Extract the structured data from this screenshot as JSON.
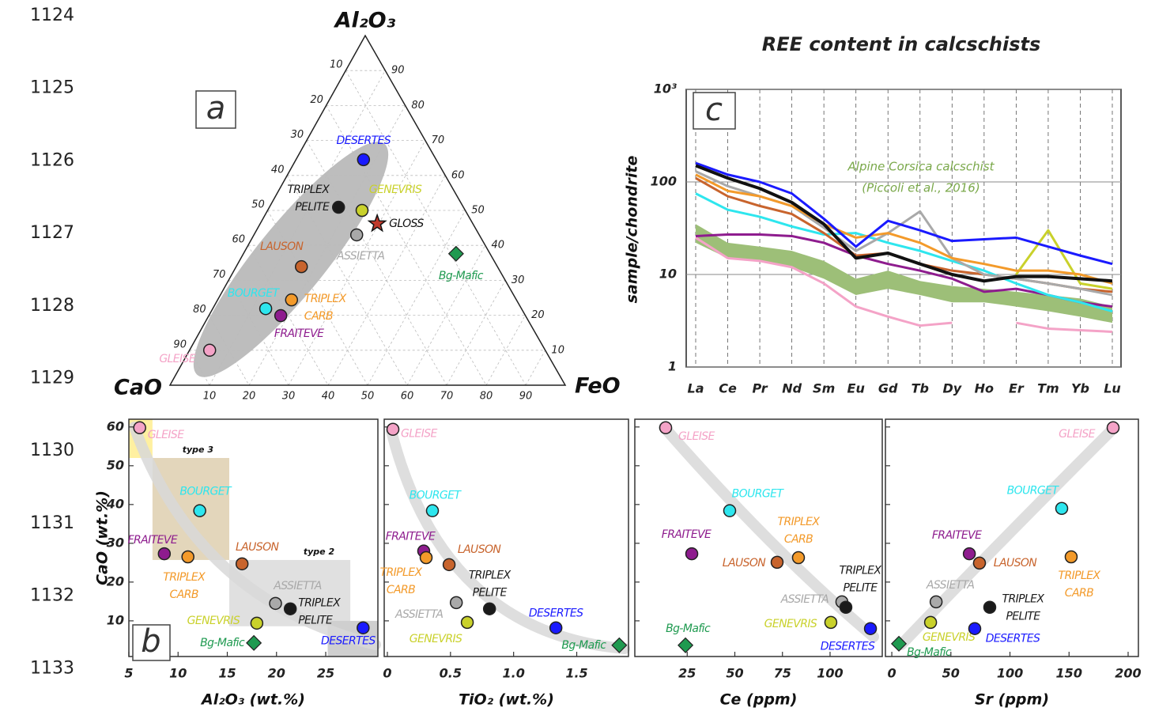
{
  "line_numbers": [
    "1124",
    "1125",
    "1126",
    "1127",
    "1128",
    "1129",
    "1130",
    "1131",
    "1132",
    "1133"
  ],
  "chart_data": [
    {
      "type": "ternary",
      "panel": "a",
      "axes": [
        "Al₂O₃",
        "CaO",
        "FeO"
      ],
      "ticks": [
        10,
        20,
        30,
        40,
        50,
        60,
        70,
        80,
        90
      ],
      "grid": true,
      "points": [
        {
          "label": [
            "DESERTES"
          ],
          "color": "#1a1aff",
          "values": [
            64.5,
            18.4,
            17.1
          ]
        },
        {
          "label": [
            "TRIPLEX",
            "PELITE"
          ],
          "color": "#1a1a1a",
          "values": [
            50.9,
            31.6,
            17.5
          ]
        },
        {
          "label": [
            "GENEVRIS"
          ],
          "color": "#c9d12b",
          "values": [
            50,
            26.1,
            23.9
          ]
        },
        {
          "label": [
            "GLOSS"
          ],
          "color": "#c0392b",
          "marker": "star",
          "values": [
            46.2,
            24.2,
            29.6
          ]
        },
        {
          "label": [
            "ASSIETTA"
          ],
          "color": "#a9a9a9",
          "values": [
            43,
            31,
            26
          ]
        },
        {
          "label": [
            "Bg-Mafic"
          ],
          "color": "#1f9a50",
          "marker": "diamond",
          "values": [
            37.6,
            8.6,
            53.8
          ]
        },
        {
          "label": [
            "LAUSON"
          ],
          "color": "#c8642d",
          "values": [
            33.9,
            49.6,
            16.5
          ]
        },
        {
          "label": [
            "BOURGET"
          ],
          "color": "#2ee6ee",
          "values": [
            21.9,
            64.7,
            13.4
          ]
        },
        {
          "label": [
            "TRIPLEX",
            "CARB"
          ],
          "color": "#f39a2a",
          "values": [
            24.4,
            56.9,
            18.7
          ]
        },
        {
          "label": [
            "FRAITEVE"
          ],
          "color": "#8e1c8e",
          "values": [
            19.9,
            61.9,
            18.2
          ]
        },
        {
          "label": [
            "GLEISE"
          ],
          "color": "#f4a3c7",
          "values": [
            10,
            84.9,
            5.1
          ]
        }
      ]
    },
    {
      "type": "line",
      "panel": "c",
      "title": "REE content in calcschists",
      "y_label": "sample/chondrite",
      "log_y": true,
      "grid": true,
      "ylim": [
        1,
        1000
      ],
      "yticks": [
        1,
        10,
        100,
        {
          "value": 1000,
          "label": "10³"
        }
      ],
      "categories": [
        "La",
        "Ce",
        "Pr",
        "Nd",
        "Sm",
        "Eu",
        "Gd",
        "Tb",
        "Dy",
        "Ho",
        "Er",
        "Tm",
        "Yb",
        "Lu"
      ],
      "band": {
        "color": "#9dbf78",
        "low": [
          22,
          15,
          14,
          12,
          9,
          6,
          7,
          6,
          5,
          5,
          4.5,
          4,
          3.5,
          3
        ],
        "high": [
          35,
          22,
          20,
          18,
          14,
          9,
          11,
          8.5,
          7.5,
          7,
          6.5,
          6,
          5.5,
          4.5
        ]
      },
      "annotations": [
        "Alpine Corsica calcschist",
        "(Piccoli et al., 2016)"
      ],
      "annotation_color": "#7aa84a",
      "series": [
        {
          "color": "#f4a3c7",
          "values": [
            25,
            15,
            14,
            12,
            8,
            4.5,
            3.5,
            2.8,
            3,
            null,
            3,
            2.6,
            2.5,
            2.4
          ]
        },
        {
          "color": "#8e1c8e",
          "values": [
            26,
            27,
            27,
            26,
            22,
            16,
            13,
            11,
            9,
            6.5,
            7,
            6,
            5,
            4.5
          ]
        },
        {
          "color": "#2ee6ee",
          "values": [
            75,
            50,
            42,
            33,
            27,
            28,
            22,
            18,
            14,
            11,
            8,
            6,
            5,
            4
          ]
        },
        {
          "color": "#c8642d",
          "values": [
            110,
            70,
            55,
            45,
            28,
            16,
            17,
            13,
            11,
            10,
            9,
            8,
            7,
            6.5
          ]
        },
        {
          "color": "#a9a9a9",
          "values": [
            130,
            90,
            70,
            55,
            32,
            18,
            28,
            48,
            15,
            10,
            9,
            8,
            7,
            6
          ]
        },
        {
          "color": "#c9d12b",
          "values": [
            null,
            null,
            null,
            null,
            null,
            null,
            null,
            null,
            null,
            null,
            10,
            30,
            8,
            7
          ]
        },
        {
          "color": "#f39a2a",
          "values": [
            120,
            80,
            70,
            55,
            35,
            25,
            28,
            22,
            15,
            13,
            11,
            11,
            10,
            8
          ]
        },
        {
          "color": "#1a1aff",
          "values": [
            160,
            120,
            100,
            75,
            40,
            20,
            38,
            30,
            23,
            24,
            25,
            20,
            16,
            13
          ]
        },
        {
          "color": "#111111",
          "values": [
            150,
            110,
            85,
            60,
            35,
            15,
            17,
            13,
            10,
            8.5,
            9.5,
            9.5,
            9,
            8.5
          ]
        }
      ]
    },
    {
      "type": "scatter",
      "panel": "b",
      "x_label": "Al₂O₃ (wt.%)",
      "y_label": "CaO (wt.%)",
      "xlim": [
        5,
        30.3
      ],
      "ylim": [
        0.8,
        62
      ],
      "xticks": [
        5,
        10,
        15,
        20,
        25
      ],
      "yticks": [
        10,
        20,
        30,
        40,
        50,
        60
      ],
      "regions": [
        {
          "color": "#fff0a0",
          "xlim": [
            5,
            7.4
          ],
          "ylim": [
            52,
            62
          ]
        },
        {
          "color": "#e3d6bb",
          "xlim": [
            7.4,
            15.2
          ],
          "ylim": [
            25.7,
            52
          ],
          "label": "type 3"
        },
        {
          "color": "#e0e0e0",
          "xlim": [
            15.2,
            27.5
          ],
          "ylim": [
            8.6,
            25.7
          ],
          "label": "type 2"
        },
        {
          "color": "#cfcfcf",
          "xlim": [
            25.2,
            30.3
          ],
          "ylim": [
            0.8,
            10
          ]
        }
      ],
      "points": [
        {
          "label": [
            "GLEISE"
          ],
          "color": "#f4a3c7",
          "x": 6.1,
          "y": 59.8
        },
        {
          "label": [
            "BOURGET"
          ],
          "color": "#2ee6ee",
          "x": 12.2,
          "y": 38.4
        },
        {
          "label": [
            "FRAITEVE"
          ],
          "color": "#8e1c8e",
          "x": 8.6,
          "y": 27.3
        },
        {
          "label": [
            "TRIPLEX",
            "CARB"
          ],
          "color": "#f39a2a",
          "x": 11.0,
          "y": 26.5
        },
        {
          "label": [
            "LAUSON"
          ],
          "color": "#c8642d",
          "x": 16.5,
          "y": 24.7
        },
        {
          "label": [
            "ASSIETTA"
          ],
          "color": "#a9a9a9",
          "x": 19.9,
          "y": 14.5
        },
        {
          "label": [
            "TRIPLEX",
            "PELITE"
          ],
          "color": "#1a1a1a",
          "x": 21.4,
          "y": 13.1
        },
        {
          "label": [
            "GENEVRIS"
          ],
          "color": "#c9d12b",
          "x": 18.0,
          "y": 9.4
        },
        {
          "label": [
            "DESERTES"
          ],
          "color": "#1a1aff",
          "x": 28.8,
          "y": 8.2
        },
        {
          "label": [
            "Bg-Mafic"
          ],
          "color": "#1f9a50",
          "marker": "diamond",
          "x": 17.7,
          "y": 4.3
        }
      ]
    },
    {
      "type": "scatter",
      "x_label": "TiO₂ (wt.%)",
      "xlim": [
        -0.025,
        1.91
      ],
      "ylim": [
        0.8,
        62
      ],
      "xticks": [
        0,
        0.5,
        {
          "value": 1,
          "label": "1.0"
        },
        1.5
      ],
      "points": [
        {
          "label": [
            "GLEISE"
          ],
          "color": "#f4a3c7",
          "x": 0.044,
          "y": 59.4
        },
        {
          "label": [
            "BOURGET"
          ],
          "color": "#2ee6ee",
          "x": 0.357,
          "y": 38.4
        },
        {
          "label": [
            "FRAITEVE"
          ],
          "color": "#8e1c8e",
          "x": 0.288,
          "y": 28.0
        },
        {
          "label": [
            "TRIPLEX",
            "CARB"
          ],
          "color": "#f39a2a",
          "x": 0.307,
          "y": 26.3
        },
        {
          "label": [
            "LAUSON"
          ],
          "color": "#c8642d",
          "x": 0.489,
          "y": 24.5
        },
        {
          "label": [
            "ASSIETTA"
          ],
          "color": "#a9a9a9",
          "x": 0.546,
          "y": 14.7
        },
        {
          "label": [
            "TRIPLEX",
            "PELITE"
          ],
          "color": "#1a1a1a",
          "x": 0.809,
          "y": 13.1
        },
        {
          "label": [
            "GENEVRIS"
          ],
          "color": "#c9d12b",
          "x": 0.633,
          "y": 9.6
        },
        {
          "label": [
            "DESERTES"
          ],
          "color": "#1a1aff",
          "x": 1.335,
          "y": 8.2
        },
        {
          "label": [
            "Bg-Mafic"
          ],
          "color": "#1f9a50",
          "marker": "diamond",
          "x": 1.837,
          "y": 3.7
        }
      ]
    },
    {
      "type": "scatter",
      "x_label": "Ce (ppm)",
      "xlim": [
        -2.5,
        127.4
      ],
      "ylim": [
        0.8,
        62
      ],
      "xticks": [
        25,
        50,
        75,
        100
      ],
      "points": [
        {
          "label": [
            "GLEISE"
          ],
          "color": "#f4a3c7",
          "x": 13.7,
          "y": 59.8
        },
        {
          "label": [
            "BOURGET"
          ],
          "color": "#2ee6ee",
          "x": 47.3,
          "y": 38.4
        },
        {
          "label": [
            "FRAITEVE"
          ],
          "color": "#8e1c8e",
          "x": 27.4,
          "y": 27.3
        },
        {
          "label": [
            "TRIPLEX",
            "CARB"
          ],
          "color": "#f39a2a",
          "x": 83.4,
          "y": 26.3
        },
        {
          "label": [
            "LAUSON"
          ],
          "color": "#c8642d",
          "x": 72.2,
          "y": 25.1
        },
        {
          "label": [
            "ASSIETTA"
          ],
          "color": "#a9a9a9",
          "x": 106.2,
          "y": 14.9
        },
        {
          "label": [
            "TRIPLEX",
            "PELITE"
          ],
          "color": "#1a1a1a",
          "x": 108.3,
          "y": 13.5
        },
        {
          "label": [
            "GENEVRIS"
          ],
          "color": "#c9d12b",
          "x": 100.4,
          "y": 9.6
        },
        {
          "label": [
            "DESERTES"
          ],
          "color": "#1a1aff",
          "x": 121.2,
          "y": 8.0
        },
        {
          "label": [
            "Bg-Mafic"
          ],
          "color": "#1f9a50",
          "marker": "diamond",
          "x": 24.1,
          "y": 3.7
        }
      ]
    },
    {
      "type": "scatter",
      "x_label": "Sr (ppm)",
      "xlim": [
        -5.4,
        208.7
      ],
      "ylim": [
        0.8,
        62
      ],
      "xticks": [
        0,
        50,
        100,
        150,
        200
      ],
      "points": [
        {
          "label": [
            "GLEISE"
          ],
          "color": "#f4a3c7",
          "x": 187.3,
          "y": 59.8
        },
        {
          "label": [
            "BOURGET"
          ],
          "color": "#2ee6ee",
          "x": 143.8,
          "y": 39.0
        },
        {
          "label": [
            "FRAITEVE"
          ],
          "color": "#8e1c8e",
          "x": 65.6,
          "y": 27.3
        },
        {
          "label": [
            "TRIPLEX",
            "CARB"
          ],
          "color": "#f39a2a",
          "x": 151.8,
          "y": 26.5
        },
        {
          "label": [
            "LAUSON"
          ],
          "color": "#c8642d",
          "x": 74.2,
          "y": 24.9
        },
        {
          "label": [
            "ASSIETTA"
          ],
          "color": "#a9a9a9",
          "x": 37.5,
          "y": 14.9
        },
        {
          "label": [
            "TRIPLEX",
            "PELITE"
          ],
          "color": "#1a1a1a",
          "x": 82.9,
          "y": 13.5
        },
        {
          "label": [
            "GENEVRIS"
          ],
          "color": "#c9d12b",
          "x": 32.8,
          "y": 9.6
        },
        {
          "label": [
            "DESERTES"
          ],
          "color": "#1a1aff",
          "x": 70.2,
          "y": 8.0
        },
        {
          "label": [
            "Bg-Mafic"
          ],
          "color": "#1f9a50",
          "marker": "diamond",
          "x": 6.0,
          "y": 4.1
        }
      ]
    }
  ]
}
